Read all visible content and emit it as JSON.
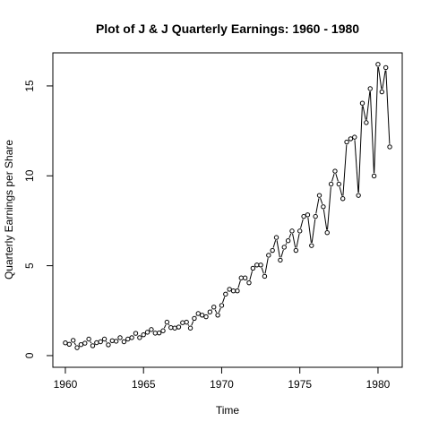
{
  "chart_data": {
    "type": "line",
    "title": "Plot of J & J Quarterly Earnings: 1960 - 1980",
    "xlabel": "Time",
    "ylabel": "Quarterly Earnings per Share",
    "xlim": [
      1959.2,
      1981.55
    ],
    "ylim": [
      -0.65,
      16.84
    ],
    "x_ticks": [
      1960,
      1965,
      1970,
      1975,
      1980
    ],
    "y_ticks": [
      0,
      5,
      10,
      15
    ],
    "grid": false,
    "legend": "none",
    "x_start": 1960,
    "x_step": 0.25,
    "series": [
      {
        "values": [
          0.71,
          0.63,
          0.85,
          0.44,
          0.61,
          0.69,
          0.92,
          0.55,
          0.72,
          0.77,
          0.92,
          0.6,
          0.83,
          0.8,
          1.0,
          0.77,
          0.92,
          1.0,
          1.24,
          1.0,
          1.16,
          1.3,
          1.45,
          1.25,
          1.26,
          1.38,
          1.86,
          1.56,
          1.53,
          1.59,
          1.83,
          1.86,
          1.53,
          2.07,
          2.34,
          2.25,
          2.16,
          2.43,
          2.7,
          2.25,
          2.79,
          3.42,
          3.69,
          3.6,
          3.6,
          4.32,
          4.32,
          4.05,
          4.86,
          5.04,
          5.04,
          4.41,
          5.58,
          5.85,
          6.57,
          5.31,
          6.03,
          6.39,
          6.93,
          5.85,
          6.93,
          7.74,
          7.83,
          6.12,
          7.74,
          8.91,
          8.28,
          6.84,
          9.54,
          10.26,
          9.54,
          8.73,
          11.88,
          12.06,
          12.15,
          8.91,
          14.04,
          12.96,
          14.85,
          9.99,
          16.2,
          14.67,
          16.02,
          11.61
        ]
      }
    ]
  }
}
